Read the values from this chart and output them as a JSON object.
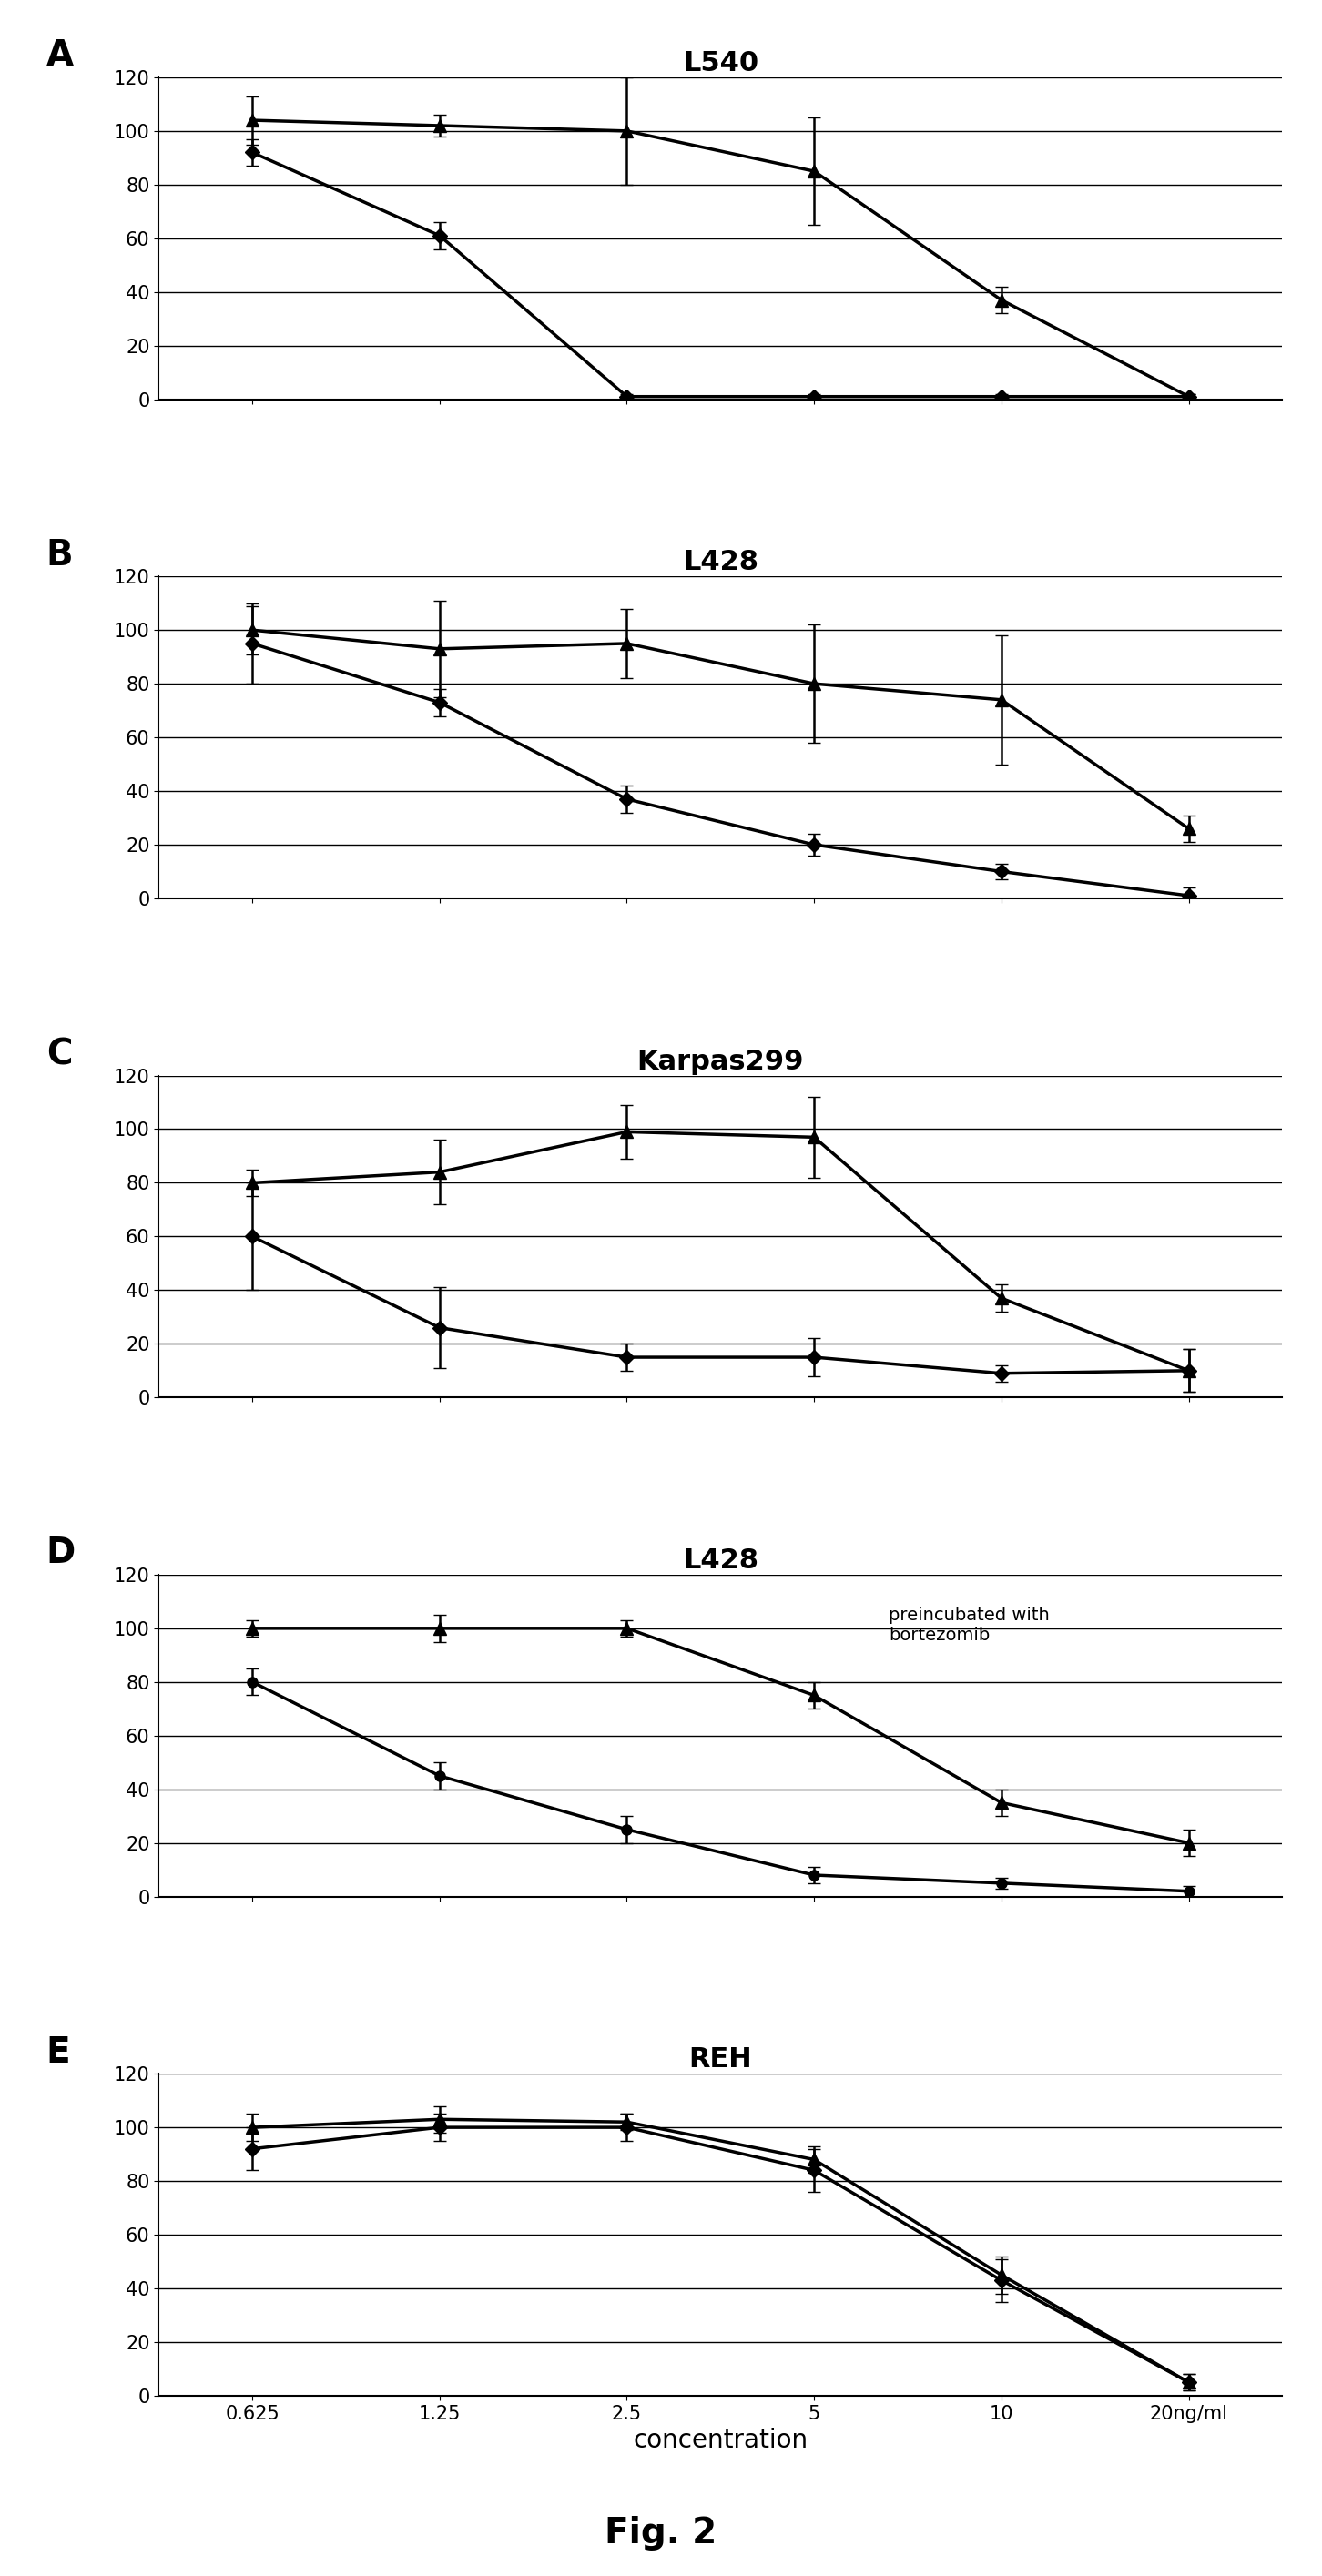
{
  "x_values": [
    0.625,
    1.25,
    2.5,
    5,
    10,
    20
  ],
  "x_labels": [
    "0.625",
    "1.25",
    "2.5",
    "5",
    "10",
    "20ng/ml"
  ],
  "panels": [
    {
      "label": "A",
      "title": "L540",
      "series": [
        {
          "y": [
            104,
            102,
            100,
            85,
            37,
            1
          ],
          "yerr": [
            9,
            4,
            20,
            20,
            5,
            1
          ],
          "marker": "^",
          "markersize": 10,
          "linewidth": 2.5
        },
        {
          "y": [
            92,
            61,
            1,
            1,
            1,
            1
          ],
          "yerr": [
            5,
            5,
            1,
            1,
            1,
            1
          ],
          "marker": "D",
          "markersize": 8,
          "linewidth": 2.5
        }
      ]
    },
    {
      "label": "B",
      "title": "L428",
      "series": [
        {
          "y": [
            100,
            93,
            95,
            80,
            74,
            26
          ],
          "yerr": [
            9,
            18,
            13,
            22,
            24,
            5
          ],
          "marker": "^",
          "markersize": 10,
          "linewidth": 2.5
        },
        {
          "y": [
            95,
            73,
            37,
            20,
            10,
            1
          ],
          "yerr": [
            15,
            5,
            5,
            4,
            3,
            3
          ],
          "marker": "D",
          "markersize": 8,
          "linewidth": 2.5
        }
      ]
    },
    {
      "label": "C",
      "title": "Karpas299",
      "series": [
        {
          "y": [
            80,
            84,
            99,
            97,
            37,
            10
          ],
          "yerr": [
            5,
            12,
            10,
            15,
            5,
            8
          ],
          "marker": "^",
          "markersize": 10,
          "linewidth": 2.5
        },
        {
          "y": [
            60,
            26,
            15,
            15,
            9,
            10
          ],
          "yerr": [
            20,
            15,
            5,
            7,
            3,
            8
          ],
          "marker": "D",
          "markersize": 8,
          "linewidth": 2.5
        }
      ]
    },
    {
      "label": "D",
      "title": "L428",
      "annotation": "preincubated with\nbortezomib",
      "series": [
        {
          "y": [
            100,
            100,
            100,
            75,
            35,
            20
          ],
          "yerr": [
            3,
            5,
            3,
            5,
            5,
            5
          ],
          "marker": "^",
          "markersize": 10,
          "linewidth": 2.5
        },
        {
          "y": [
            80,
            45,
            25,
            8,
            5,
            2
          ],
          "yerr": [
            5,
            5,
            5,
            3,
            2,
            2
          ],
          "marker": "o",
          "markersize": 8,
          "linewidth": 2.5
        }
      ]
    },
    {
      "label": "E",
      "title": "REH",
      "series": [
        {
          "y": [
            100,
            103,
            102,
            88,
            45,
            5
          ],
          "yerr": [
            5,
            5,
            3,
            5,
            7,
            3
          ],
          "marker": "^",
          "markersize": 10,
          "linewidth": 2.5
        },
        {
          "y": [
            92,
            100,
            100,
            84,
            43,
            5
          ],
          "yerr": [
            8,
            5,
            5,
            8,
            8,
            3
          ],
          "marker": "D",
          "markersize": 8,
          "linewidth": 2.5
        }
      ]
    }
  ],
  "xlabel": "concentration",
  "ylim": [
    0,
    120
  ],
  "yticks": [
    0,
    20,
    40,
    60,
    80,
    100,
    120
  ],
  "line_color": "black",
  "background_color": "white",
  "fig_title": "Fig. 2",
  "panel_label_fontsize": 28,
  "title_fontsize": 22,
  "tick_fontsize": 15,
  "xlabel_fontsize": 20,
  "annotation_fontsize": 14
}
